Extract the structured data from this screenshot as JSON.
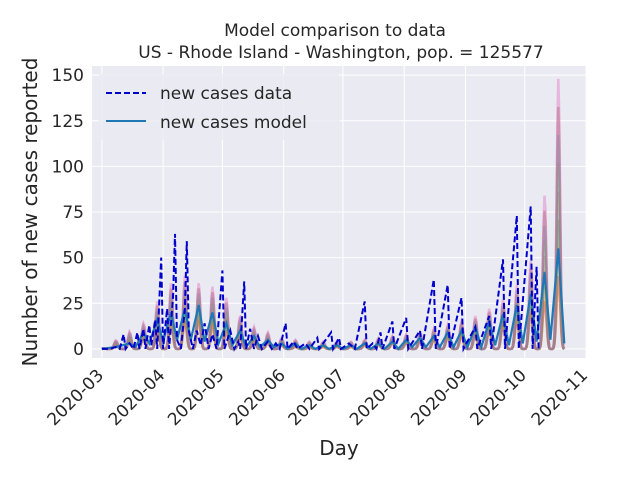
{
  "chart_data": {
    "type": "line",
    "title_lines": [
      "Model comparison to data",
      "US - Rhode Island - Washington, pop. = 125577"
    ],
    "xlabel": "Day",
    "ylabel": "Number of new cases reported",
    "xlim": [
      "2020-02-25",
      "2020-11-01"
    ],
    "ylim": [
      -5,
      155
    ],
    "x_ticks": [
      "2020-03",
      "2020-04",
      "2020-05",
      "2020-06",
      "2020-07",
      "2020-08",
      "2020-09",
      "2020-10",
      "2020-11"
    ],
    "y_ticks": [
      0,
      25,
      50,
      75,
      100,
      125,
      150
    ],
    "grid": true,
    "legend_position": "top-left",
    "legend": [
      {
        "label": "new cases data",
        "style": "dashed",
        "color": "#0000cc"
      },
      {
        "label": "new cases model",
        "style": "solid",
        "color": "#1f77b4"
      }
    ],
    "series": [
      {
        "name": "new cases data",
        "style": "dashed",
        "color": "#0000cc",
        "points": [
          [
            "2020-03-01",
            0
          ],
          [
            "2020-03-05",
            0
          ],
          [
            "2020-03-08",
            1
          ],
          [
            "2020-03-10",
            0
          ],
          [
            "2020-03-12",
            8
          ],
          [
            "2020-03-13",
            0
          ],
          [
            "2020-03-15",
            3
          ],
          [
            "2020-03-17",
            0
          ],
          [
            "2020-03-19",
            9
          ],
          [
            "2020-03-20",
            0
          ],
          [
            "2020-03-22",
            11
          ],
          [
            "2020-03-23",
            0
          ],
          [
            "2020-03-25",
            13
          ],
          [
            "2020-03-26",
            2
          ],
          [
            "2020-03-28",
            16
          ],
          [
            "2020-03-29",
            0
          ],
          [
            "2020-03-31",
            50
          ],
          [
            "2020-04-01",
            0
          ],
          [
            "2020-04-03",
            22
          ],
          [
            "2020-04-04",
            0
          ],
          [
            "2020-04-06",
            28
          ],
          [
            "2020-04-07",
            63
          ],
          [
            "2020-04-08",
            5
          ],
          [
            "2020-04-10",
            0
          ],
          [
            "2020-04-12",
            22
          ],
          [
            "2020-04-13",
            59
          ],
          [
            "2020-04-14",
            10
          ],
          [
            "2020-04-16",
            0
          ],
          [
            "2020-04-18",
            10
          ],
          [
            "2020-04-20",
            2
          ],
          [
            "2020-04-22",
            14
          ],
          [
            "2020-04-24",
            0
          ],
          [
            "2020-04-26",
            8
          ],
          [
            "2020-04-28",
            0
          ],
          [
            "2020-05-01",
            43
          ],
          [
            "2020-05-02",
            0
          ],
          [
            "2020-05-05",
            10
          ],
          [
            "2020-05-07",
            0
          ],
          [
            "2020-05-09",
            4
          ],
          [
            "2020-05-10",
            0
          ],
          [
            "2020-05-12",
            37
          ],
          [
            "2020-05-13",
            0
          ],
          [
            "2020-05-15",
            11
          ],
          [
            "2020-05-17",
            0
          ],
          [
            "2020-05-19",
            7
          ],
          [
            "2020-05-21",
            0
          ],
          [
            "2020-05-24",
            4
          ],
          [
            "2020-05-26",
            0
          ],
          [
            "2020-05-28",
            3
          ],
          [
            "2020-05-30",
            0
          ],
          [
            "2020-06-02",
            14
          ],
          [
            "2020-06-03",
            0
          ],
          [
            "2020-06-06",
            4
          ],
          [
            "2020-06-08",
            0
          ],
          [
            "2020-06-12",
            3
          ],
          [
            "2020-06-14",
            0
          ],
          [
            "2020-06-18",
            6
          ],
          [
            "2020-06-19",
            0
          ],
          [
            "2020-06-25",
            9
          ],
          [
            "2020-06-26",
            0
          ],
          [
            "2020-06-29",
            6
          ],
          [
            "2020-06-30",
            0
          ],
          [
            "2020-07-04",
            3
          ],
          [
            "2020-07-07",
            0
          ],
          [
            "2020-07-12",
            26
          ],
          [
            "2020-07-13",
            0
          ],
          [
            "2020-07-16",
            3
          ],
          [
            "2020-07-18",
            0
          ],
          [
            "2020-07-20",
            9
          ],
          [
            "2020-07-21",
            0
          ],
          [
            "2020-07-26",
            15
          ],
          [
            "2020-07-27",
            0
          ],
          [
            "2020-08-02",
            17
          ],
          [
            "2020-08-03",
            0
          ],
          [
            "2020-08-09",
            10
          ],
          [
            "2020-08-10",
            0
          ],
          [
            "2020-08-16",
            38
          ],
          [
            "2020-08-17",
            0
          ],
          [
            "2020-08-23",
            35
          ],
          [
            "2020-08-24",
            0
          ],
          [
            "2020-08-30",
            28
          ],
          [
            "2020-08-31",
            0
          ],
          [
            "2020-09-06",
            12
          ],
          [
            "2020-09-07",
            0
          ],
          [
            "2020-09-13",
            18
          ],
          [
            "2020-09-14",
            0
          ],
          [
            "2020-09-20",
            49
          ],
          [
            "2020-09-21",
            0
          ],
          [
            "2020-09-27",
            73
          ],
          [
            "2020-09-28",
            0
          ],
          [
            "2020-10-04",
            78
          ],
          [
            "2020-10-05",
            0
          ],
          [
            "2020-10-07",
            45
          ],
          [
            "2020-10-08",
            0
          ]
        ]
      },
      {
        "name": "new cases model",
        "style": "solid",
        "color": "#1f77b4",
        "points": [
          [
            "2020-03-01",
            0
          ],
          [
            "2020-03-08",
            1
          ],
          [
            "2020-03-15",
            3
          ],
          [
            "2020-03-18",
            1
          ],
          [
            "2020-03-22",
            9
          ],
          [
            "2020-03-25",
            3
          ],
          [
            "2020-03-29",
            16
          ],
          [
            "2020-04-01",
            4
          ],
          [
            "2020-04-05",
            20
          ],
          [
            "2020-04-08",
            5
          ],
          [
            "2020-04-12",
            22
          ],
          [
            "2020-04-15",
            5
          ],
          [
            "2020-04-19",
            24
          ],
          [
            "2020-04-22",
            4
          ],
          [
            "2020-04-26",
            20
          ],
          [
            "2020-04-29",
            3
          ],
          [
            "2020-05-03",
            14
          ],
          [
            "2020-05-06",
            2
          ],
          [
            "2020-05-10",
            10
          ],
          [
            "2020-05-13",
            1
          ],
          [
            "2020-05-17",
            7
          ],
          [
            "2020-05-20",
            1
          ],
          [
            "2020-05-24",
            5
          ],
          [
            "2020-05-27",
            1
          ],
          [
            "2020-05-31",
            3
          ],
          [
            "2020-06-03",
            0
          ],
          [
            "2020-06-07",
            3
          ],
          [
            "2020-06-10",
            0
          ],
          [
            "2020-06-14",
            2
          ],
          [
            "2020-06-17",
            0
          ],
          [
            "2020-06-21",
            2
          ],
          [
            "2020-06-24",
            0
          ],
          [
            "2020-06-28",
            2
          ],
          [
            "2020-07-01",
            0
          ],
          [
            "2020-07-05",
            2
          ],
          [
            "2020-07-08",
            0
          ],
          [
            "2020-07-12",
            3
          ],
          [
            "2020-07-15",
            0
          ],
          [
            "2020-07-19",
            3
          ],
          [
            "2020-07-22",
            0
          ],
          [
            "2020-07-26",
            4
          ],
          [
            "2020-07-29",
            0
          ],
          [
            "2020-08-02",
            5
          ],
          [
            "2020-08-05",
            1
          ],
          [
            "2020-08-09",
            6
          ],
          [
            "2020-08-12",
            1
          ],
          [
            "2020-08-16",
            7
          ],
          [
            "2020-08-19",
            1
          ],
          [
            "2020-08-23",
            9
          ],
          [
            "2020-08-26",
            1
          ],
          [
            "2020-08-30",
            10
          ],
          [
            "2020-09-02",
            1
          ],
          [
            "2020-09-06",
            12
          ],
          [
            "2020-09-09",
            1
          ],
          [
            "2020-09-13",
            15
          ],
          [
            "2020-09-16",
            2
          ],
          [
            "2020-09-20",
            19
          ],
          [
            "2020-09-23",
            2
          ],
          [
            "2020-09-27",
            24
          ],
          [
            "2020-09-30",
            3
          ],
          [
            "2020-10-04",
            30
          ],
          [
            "2020-10-07",
            4
          ],
          [
            "2020-10-11",
            42
          ],
          [
            "2020-10-14",
            5
          ],
          [
            "2020-10-18",
            55
          ],
          [
            "2020-10-21",
            3
          ]
        ]
      }
    ],
    "model_band": {
      "name": "model ensemble",
      "peaks": [
        {
          "date": "2020-03-22",
          "low": 6,
          "high": 14
        },
        {
          "date": "2020-03-29",
          "low": 10,
          "high": 26
        },
        {
          "date": "2020-04-05",
          "low": 14,
          "high": 36
        },
        {
          "date": "2020-04-12",
          "low": 15,
          "high": 40
        },
        {
          "date": "2020-04-19",
          "low": 16,
          "high": 36
        },
        {
          "date": "2020-04-26",
          "low": 13,
          "high": 34
        },
        {
          "date": "2020-05-03",
          "low": 9,
          "high": 28
        },
        {
          "date": "2020-05-10",
          "low": 6,
          "high": 18
        },
        {
          "date": "2020-05-17",
          "low": 4,
          "high": 12
        },
        {
          "date": "2020-05-24",
          "low": 3,
          "high": 9
        },
        {
          "date": "2020-05-31",
          "low": 2,
          "high": 6
        },
        {
          "date": "2020-06-07",
          "low": 1,
          "high": 5
        },
        {
          "date": "2020-06-14",
          "low": 1,
          "high": 4
        },
        {
          "date": "2020-06-21",
          "low": 1,
          "high": 4
        },
        {
          "date": "2020-06-28",
          "low": 1,
          "high": 4
        },
        {
          "date": "2020-07-05",
          "low": 1,
          "high": 4
        },
        {
          "date": "2020-07-12",
          "low": 2,
          "high": 5
        },
        {
          "date": "2020-07-19",
          "low": 2,
          "high": 6
        },
        {
          "date": "2020-07-26",
          "low": 3,
          "high": 7
        },
        {
          "date": "2020-08-02",
          "low": 3,
          "high": 8
        },
        {
          "date": "2020-08-09",
          "low": 4,
          "high": 9
        },
        {
          "date": "2020-08-16",
          "low": 5,
          "high": 11
        },
        {
          "date": "2020-08-23",
          "low": 6,
          "high": 13
        },
        {
          "date": "2020-08-30",
          "low": 7,
          "high": 15
        },
        {
          "date": "2020-09-06",
          "low": 8,
          "high": 18
        },
        {
          "date": "2020-09-13",
          "low": 10,
          "high": 22
        },
        {
          "date": "2020-09-20",
          "low": 13,
          "high": 27
        },
        {
          "date": "2020-09-27",
          "low": 16,
          "high": 35
        },
        {
          "date": "2020-10-04",
          "low": 20,
          "high": 48
        },
        {
          "date": "2020-10-11",
          "low": 26,
          "high": 84
        },
        {
          "date": "2020-10-18",
          "low": 40,
          "high": 148
        }
      ],
      "colors": [
        "#d62728",
        "#ff7f0e",
        "#2ca02c",
        "#9467bd",
        "#bcbd22",
        "#17becf",
        "#8c564b",
        "#e377c2"
      ]
    }
  }
}
